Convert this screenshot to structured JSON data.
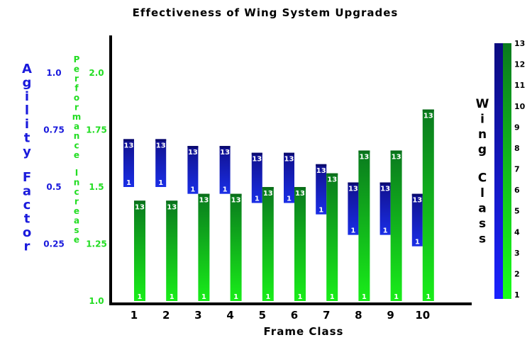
{
  "chart_data": {
    "type": "bar",
    "title": "Effectiveness of Wing System Upgrades",
    "xlabel": "Frame Class",
    "categories": [
      "1",
      "2",
      "3",
      "4",
      "5",
      "6",
      "7",
      "8",
      "9",
      "10"
    ],
    "ylabel_left": "Agility Factor",
    "ylabel_right": "Performance Increase",
    "colorbar_label": "Wing Class",
    "agility_axis": {
      "ticks": [
        "1.0",
        "0.75",
        "0.5",
        "0.25"
      ],
      "values": [
        1.0,
        0.75,
        0.5,
        0.25
      ],
      "color": "#1a1adc"
    },
    "performance_axis": {
      "ticks": [
        "2.0",
        "1.75",
        "1.5",
        "1.25",
        "1.0"
      ],
      "values": [
        2.0,
        1.75,
        1.5,
        1.25,
        1.0
      ],
      "ylim": [
        1.0,
        2.2
      ],
      "color": "#22dd22"
    },
    "series": [
      {
        "name": "Agility Factor",
        "bar_low_label": "1",
        "bar_high_label": "13",
        "low": [
          0.5,
          0.5,
          0.47,
          0.47,
          0.43,
          0.43,
          0.38,
          0.29,
          0.29,
          0.24
        ],
        "high": [
          0.71,
          0.71,
          0.68,
          0.68,
          0.65,
          0.65,
          0.6,
          0.52,
          0.52,
          0.47
        ]
      },
      {
        "name": "Performance Increase",
        "bar_low_label": "1",
        "bar_high_label": "13",
        "values": [
          1.44,
          1.44,
          1.47,
          1.47,
          1.5,
          1.5,
          1.56,
          1.66,
          1.66,
          1.84
        ]
      }
    ],
    "colorbar": {
      "ticks": [
        "13",
        "12",
        "11",
        "10",
        "9",
        "8",
        "7",
        "6",
        "5",
        "4",
        "3",
        "2",
        "1"
      ],
      "range": [
        1,
        13
      ]
    }
  }
}
